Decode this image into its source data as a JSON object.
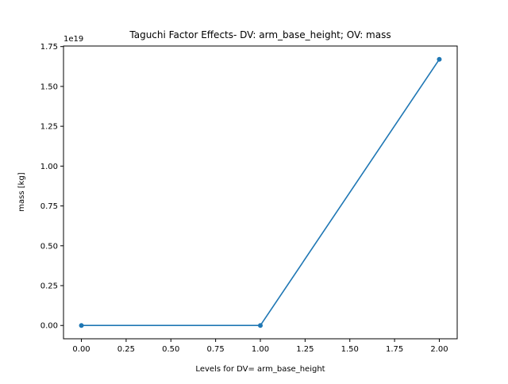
{
  "chart_data": {
    "type": "line",
    "title": "Taguchi Factor Effects- DV: arm_base_height; OV: mass",
    "xlabel": "Levels for DV= arm_base_height",
    "ylabel": "mass [kg]",
    "y_offset_label": "1e19",
    "x": [
      0,
      1,
      2
    ],
    "series": [
      {
        "values": [
          0.0,
          0.0,
          1.67
        ]
      }
    ],
    "y_scale_factor": 1e+19,
    "xlim": [
      -0.1,
      2.1
    ],
    "ylim": [
      -0.0835,
      1.7535
    ],
    "x_ticks": [
      0.0,
      0.25,
      0.5,
      0.75,
      1.0,
      1.25,
      1.5,
      1.75,
      2.0
    ],
    "x_tick_labels": [
      "0.00",
      "0.25",
      "0.50",
      "0.75",
      "1.00",
      "1.25",
      "1.50",
      "1.75",
      "2.00"
    ],
    "y_ticks": [
      0.0,
      0.25,
      0.5,
      0.75,
      1.0,
      1.25,
      1.5,
      1.75
    ],
    "y_tick_labels": [
      "0.00",
      "0.25",
      "0.50",
      "0.75",
      "1.00",
      "1.25",
      "1.50",
      "1.75"
    ],
    "grid": false,
    "legend": "none",
    "line_color": "#1f77b4",
    "marker": "circle"
  }
}
